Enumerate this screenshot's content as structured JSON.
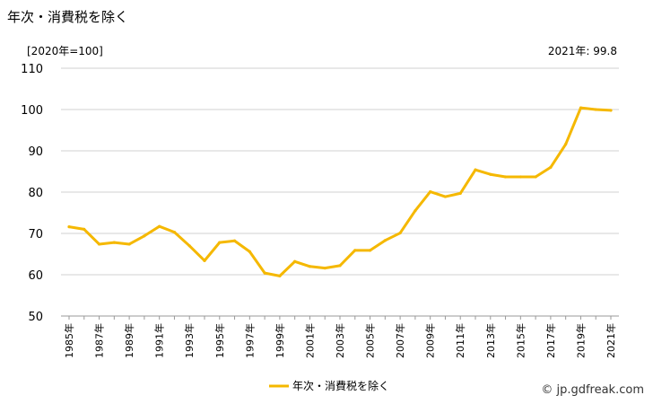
{
  "header": {
    "title": "年次・消費税を除く",
    "unit": "[2020年=100]",
    "latest_note": "2021年: 99.8"
  },
  "footer": {
    "source": "© jp.gdfreak.com"
  },
  "chart_data": {
    "type": "line",
    "title": "年次・消費税を除く",
    "xlabel": "",
    "ylabel": "",
    "ylim": [
      50,
      110
    ],
    "yticks": [
      50,
      60,
      70,
      80,
      90,
      100,
      110
    ],
    "grid": true,
    "legend_position": "bottom",
    "x": [
      1985,
      1986,
      1987,
      1988,
      1989,
      1990,
      1991,
      1992,
      1993,
      1994,
      1995,
      1996,
      1997,
      1998,
      1999,
      2000,
      2001,
      2002,
      2003,
      2004,
      2005,
      2006,
      2007,
      2008,
      2009,
      2010,
      2011,
      2012,
      2013,
      2014,
      2015,
      2016,
      2017,
      2018,
      2019,
      2020,
      2021
    ],
    "xtick_labels": [
      "1985年",
      "1987年",
      "1989年",
      "1991年",
      "1993年",
      "1995年",
      "1997年",
      "1999年",
      "2001年",
      "2003年",
      "2005年",
      "2007年",
      "2009年",
      "2011年",
      "2013年",
      "2015年",
      "2017年",
      "2019年",
      "2021年"
    ],
    "series": [
      {
        "name": "年次・消費税を除く",
        "color": "#f5b800",
        "values": [
          71.6,
          71.0,
          67.4,
          67.8,
          67.4,
          69.4,
          71.7,
          70.3,
          67.0,
          63.4,
          67.8,
          68.2,
          65.6,
          60.4,
          59.7,
          63.2,
          62.0,
          61.6,
          62.2,
          65.9,
          65.9,
          68.3,
          70.1,
          75.5,
          80.1,
          78.9,
          79.7,
          85.4,
          84.3,
          83.7,
          83.7,
          83.7,
          86.0,
          91.6,
          100.4,
          100.0,
          99.8
        ]
      }
    ]
  }
}
